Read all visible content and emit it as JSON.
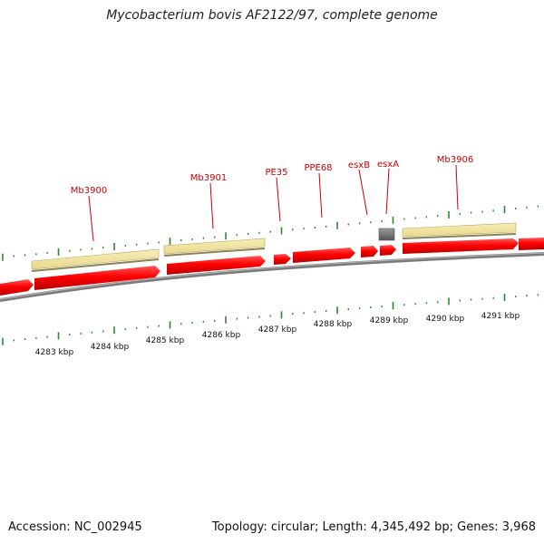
{
  "title": "Mycobacterium bovis AF2122/97, complete genome",
  "footer": {
    "accession": "Accession: NC_002945",
    "summary": "Topology: circular; Length: 4,345,492 bp; Genes: 3,968"
  },
  "colors": {
    "cds": "#ff0000",
    "pseudo_gray": "#777777",
    "gene_bar": "#f2e6a0",
    "backbone": "#888888",
    "tick": "#2a8a2a",
    "label": "#cc0000"
  },
  "gene_labels": [
    {
      "name": "Mb3900"
    },
    {
      "name": "Mb3901"
    },
    {
      "name": "PE35"
    },
    {
      "name": "PPE68"
    },
    {
      "name": "esxB"
    },
    {
      "name": "esxA"
    },
    {
      "name": "Mb3906"
    }
  ],
  "kbp_labels": [
    "4283 kbp",
    "4284 kbp",
    "4285 kbp",
    "4286 kbp",
    "4287 kbp",
    "4288 kbp",
    "4289 kbp",
    "4290 kbp",
    "4291 kbp"
  ]
}
